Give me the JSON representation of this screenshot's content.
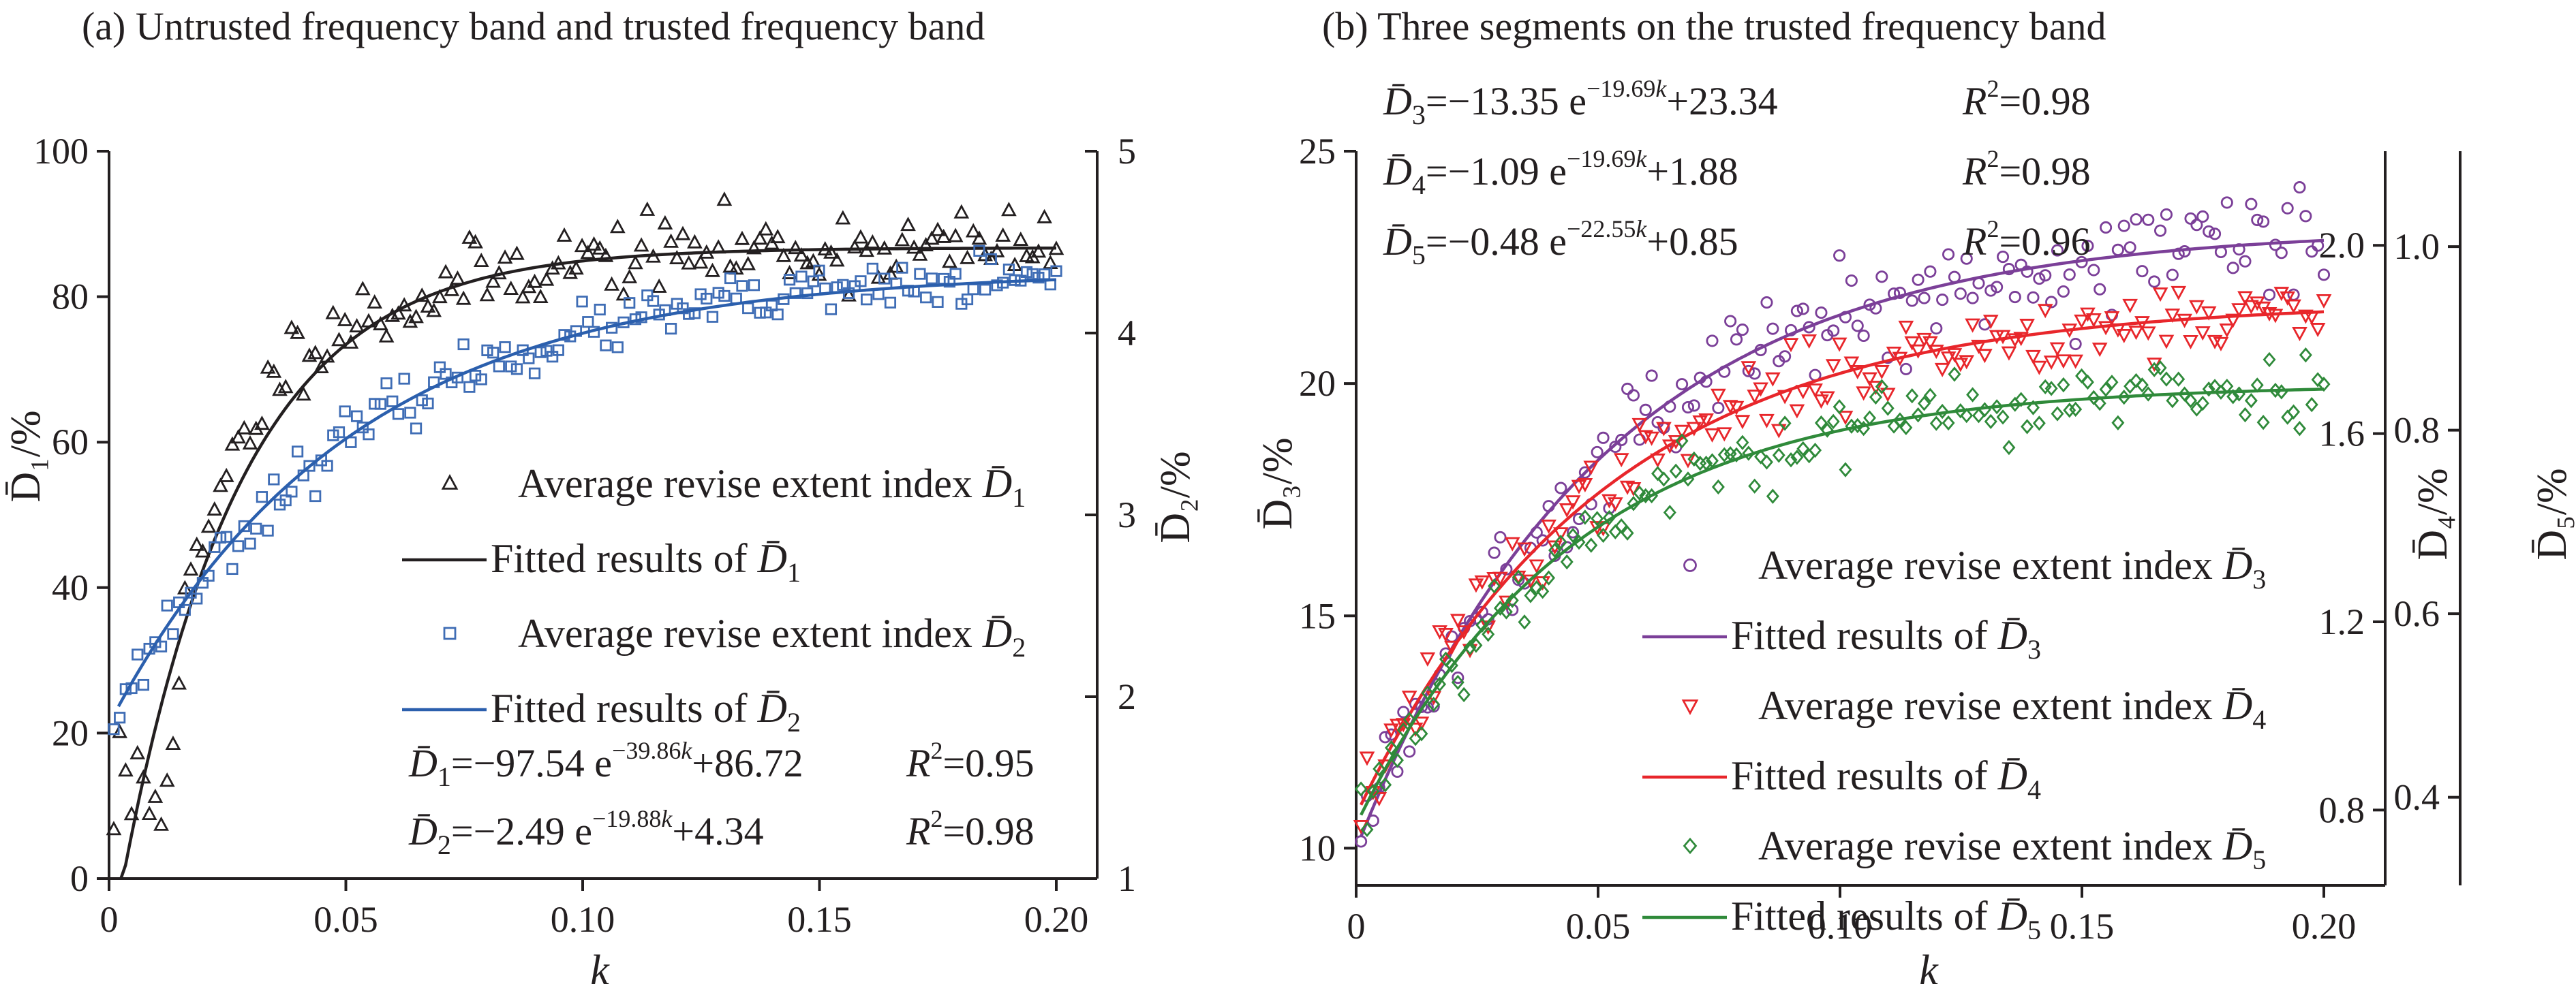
{
  "figure": {
    "panels": [
      "a",
      "b"
    ]
  },
  "chart_data": [
    {
      "id": "a",
      "type": "scatter",
      "title": "(a) Untrusted frequency band and trusted frequency band",
      "xlabel": "k",
      "ylabel": "D̄₁/%",
      "y2label": "D̄₂/%",
      "xlim": [
        0,
        0.2
      ],
      "ylim": [
        0,
        100
      ],
      "y2lim": [
        1,
        5
      ],
      "xticks": [
        "0",
        "0.05",
        "0.10",
        "0.15",
        "0.20"
      ],
      "xtick_values": [
        0,
        0.05,
        0.1,
        0.15,
        0.2
      ],
      "yticks": [
        "0",
        "20",
        "40",
        "60",
        "80",
        "100"
      ],
      "ytick_values": [
        0,
        20,
        40,
        60,
        80,
        100
      ],
      "y2ticks": [
        "1",
        "2",
        "3",
        "4",
        "5"
      ],
      "y2tick_values": [
        1,
        2,
        3,
        4,
        5
      ],
      "legend": {
        "placement": "center-right",
        "entries": [
          {
            "text": "Average revise extent index",
            "sym": "D",
            "sub": "1",
            "marker": "triangle",
            "color": "#231f20"
          },
          {
            "text": "Fitted results of",
            "sym": "D",
            "sub": "1",
            "marker": "line",
            "color": "#231f20"
          },
          {
            "text": "Average revise extent index",
            "sym": "D",
            "sub": "2",
            "marker": "square",
            "color": "#3f6db5"
          },
          {
            "text": "Fitted results of",
            "sym": "D",
            "sub": "2",
            "marker": "line",
            "color": "#2b5fad"
          }
        ]
      },
      "equations": [
        {
          "sub": "1",
          "text": "=−97.54 e",
          "exp": "−39.86",
          "expk": "k",
          "tail": "+86.72",
          "r2": "=0.95"
        },
        {
          "sub": "2",
          "text": "=−2.49 e",
          "exp": "−19.88",
          "expk": "k",
          "tail": "+4.34",
          "r2": "=0.98"
        }
      ],
      "series": [
        {
          "name": "Average revise extent index D̄1",
          "kind": "scatter",
          "marker": "triangle",
          "color": "#231f20",
          "axis": "left",
          "fit": {
            "A": -97.54,
            "b": 39.86,
            "C": 86.72
          },
          "noise": 2.6,
          "seed": 11,
          "n": 160
        },
        {
          "name": "Fitted results of D̄1",
          "kind": "line",
          "color": "#231f20",
          "axis": "left",
          "fit": {
            "A": -97.54,
            "b": 39.86,
            "C": 86.72
          }
        },
        {
          "name": "Average revise extent index D̄2",
          "kind": "scatter",
          "marker": "square",
          "color": "#3f6db5",
          "axis": "right",
          "fit": {
            "A": -2.49,
            "b": 19.88,
            "C": 4.34
          },
          "noise": 0.07,
          "seed": 23,
          "n": 160
        },
        {
          "name": "Fitted results of D̄2",
          "kind": "line",
          "color": "#2b5fad",
          "axis": "right",
          "fit": {
            "A": -2.49,
            "b": 19.88,
            "C": 4.34
          }
        }
      ]
    },
    {
      "id": "b",
      "type": "scatter",
      "title": "(b) Three segments on the trusted frequency band",
      "xlabel": "k",
      "ylabel": "D̄₃/%",
      "y2label": "D̄₄/%",
      "y3label": "D̄₅/%",
      "xlim": [
        0,
        0.2
      ],
      "ylim": [
        9.2,
        25
      ],
      "y2lim": [
        0.64,
        2.2
      ],
      "y3lim": [
        0.304,
        1.104
      ],
      "xticks": [
        "0",
        "0.05",
        "0.10",
        "0.15",
        "0.20"
      ],
      "xtick_values": [
        0,
        0.05,
        0.1,
        0.15,
        0.2
      ],
      "yticks": [
        "10",
        "15",
        "20",
        "25"
      ],
      "ytick_values": [
        10,
        15,
        20,
        25
      ],
      "y2ticks": [
        "0.8",
        "1.2",
        "1.6",
        "2.0"
      ],
      "y2tick_values": [
        0.8,
        1.2,
        1.6,
        2.0
      ],
      "y3ticks": [
        "0.4",
        "0.6",
        "0.8",
        "1.0"
      ],
      "y3tick_values": [
        0.4,
        0.6,
        0.8,
        1.0
      ],
      "legend": {
        "placement": "bottom-right",
        "entries": [
          {
            "text": "Average revise extent index",
            "sym": "D",
            "sub": "3",
            "marker": "circle",
            "color": "#7b3f98"
          },
          {
            "text": "Fitted results of",
            "sym": "D",
            "sub": "3",
            "marker": "line",
            "color": "#7b3f98"
          },
          {
            "text": "Average revise extent index",
            "sym": "D",
            "sub": "4",
            "marker": "invtriangle",
            "color": "#e8262b"
          },
          {
            "text": "Fitted results of",
            "sym": "D",
            "sub": "4",
            "marker": "line",
            "color": "#e8262b"
          },
          {
            "text": "Average revise extent index",
            "sym": "D",
            "sub": "5",
            "marker": "diamond",
            "color": "#2f8a3a"
          },
          {
            "text": "Fitted results of",
            "sym": "D",
            "sub": "5",
            "marker": "line",
            "color": "#2f8a3a"
          }
        ]
      },
      "equations": [
        {
          "sub": "3",
          "text": "=−13.35 e",
          "exp": "−19.69",
          "expk": "k",
          "tail": "+23.34",
          "r2": "=0.98"
        },
        {
          "sub": "4",
          "text": "=−1.09 e",
          "exp": "−19.69",
          "expk": "k",
          "tail": "+1.88",
          "r2": "=0.98"
        },
        {
          "sub": "5",
          "text": "=−0.48 e",
          "exp": "−22.55",
          "expk": "k",
          "tail": "+0.85",
          "r2": "=0.96"
        }
      ],
      "series": [
        {
          "name": "Average revise extent index D̄3",
          "kind": "scatter",
          "marker": "circle",
          "color": "#7b3f98",
          "axis": "left",
          "fit": {
            "A": -13.35,
            "b": 19.69,
            "C": 23.34
          },
          "noise": 0.55,
          "seed": 5,
          "n": 160
        },
        {
          "name": "Fitted results of D̄3",
          "kind": "line",
          "color": "#7b3f98",
          "axis": "left",
          "fit": {
            "A": -13.35,
            "b": 19.69,
            "C": 23.34
          }
        },
        {
          "name": "Average revise extent index D̄4",
          "kind": "scatter",
          "marker": "invtriangle",
          "color": "#e8262b",
          "axis": "right",
          "fit": {
            "A": -1.09,
            "b": 19.69,
            "C": 1.88
          },
          "noise": 0.04,
          "seed": 37,
          "n": 160
        },
        {
          "name": "Fitted results of D̄4",
          "kind": "line",
          "color": "#e8262b",
          "axis": "right",
          "fit": {
            "A": -1.09,
            "b": 19.69,
            "C": 1.88
          }
        },
        {
          "name": "Average revise extent index D̄5",
          "kind": "scatter",
          "marker": "diamond",
          "color": "#2f8a3a",
          "axis": "right2",
          "fit": {
            "A": -0.48,
            "b": 22.55,
            "C": 0.85
          },
          "noise": 0.02,
          "seed": 53,
          "n": 160
        },
        {
          "name": "Fitted results of D̄5",
          "kind": "line",
          "color": "#2f8a3a",
          "axis": "right2",
          "fit": {
            "A": -0.48,
            "b": 22.55,
            "C": 0.85
          }
        }
      ]
    }
  ]
}
